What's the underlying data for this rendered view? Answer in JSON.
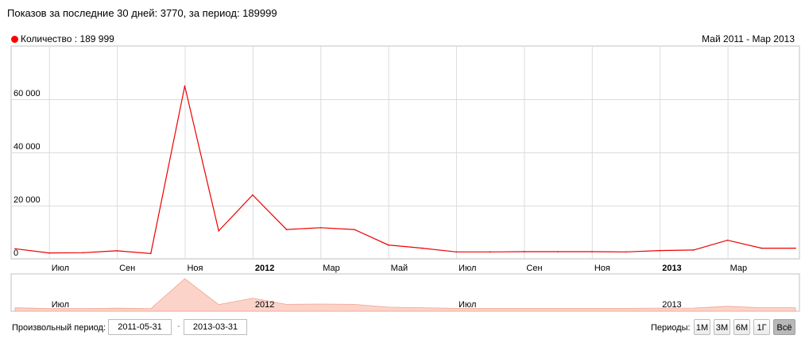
{
  "header": {
    "summary": "Показов за последние 30 дней: 3770, за период: 189999"
  },
  "legend": {
    "label": "Количество : 189 999",
    "color": "#ff0000"
  },
  "range_label": "Май 2011 - Мар 2013",
  "chart_data": {
    "type": "line",
    "series": [
      {
        "name": "Количество",
        "values": [
          3800,
          2200,
          2300,
          3000,
          2000,
          65000,
          10500,
          24000,
          11000,
          11700,
          11000,
          5200,
          4000,
          2600,
          2600,
          2700,
          2700,
          2700,
          2600,
          3100,
          3300,
          7000,
          4000,
          4000
        ]
      }
    ],
    "x": [
      "2011-05-31",
      "2011-06-30",
      "2011-07-31",
      "2011-08-31",
      "2011-09-30",
      "2011-10-31",
      "2011-11-30",
      "2011-12-31",
      "2012-01-31",
      "2012-02-29",
      "2012-03-31",
      "2012-04-30",
      "2012-05-31",
      "2012-06-30",
      "2012-07-31",
      "2012-08-31",
      "2012-09-30",
      "2012-10-31",
      "2012-11-30",
      "2012-12-31",
      "2013-01-31",
      "2013-02-28",
      "2013-03-31",
      "2013-04-30"
    ],
    "ylim": [
      0,
      80000
    ],
    "yticks": [
      "60 000",
      "40 000",
      "20 000",
      "0"
    ],
    "ytick_values": [
      60000,
      40000,
      20000,
      0
    ],
    "xticks": [
      "Июл",
      "Сен",
      "Ноя",
      "2012",
      "Мар",
      "Май",
      "Июл",
      "Сен",
      "Ноя",
      "2013",
      "Мар"
    ],
    "xtick_bold": [
      false,
      false,
      false,
      true,
      false,
      false,
      false,
      false,
      false,
      true,
      false
    ],
    "navigator_labels": [
      "Июл",
      "2012",
      "Июл",
      "2013"
    ],
    "line_color": "#ee0000",
    "navigator_fill": "#fbd3c9",
    "grid": true
  },
  "controls": {
    "custom_period_label": "Произвольный период:",
    "date_from": "2011-05-31",
    "date_to": "2013-03-31",
    "separator": "-",
    "periods_label": "Периоды:",
    "period_buttons": [
      "1М",
      "3М",
      "6М",
      "1Г",
      "Всё"
    ],
    "active_period": "Всё"
  }
}
